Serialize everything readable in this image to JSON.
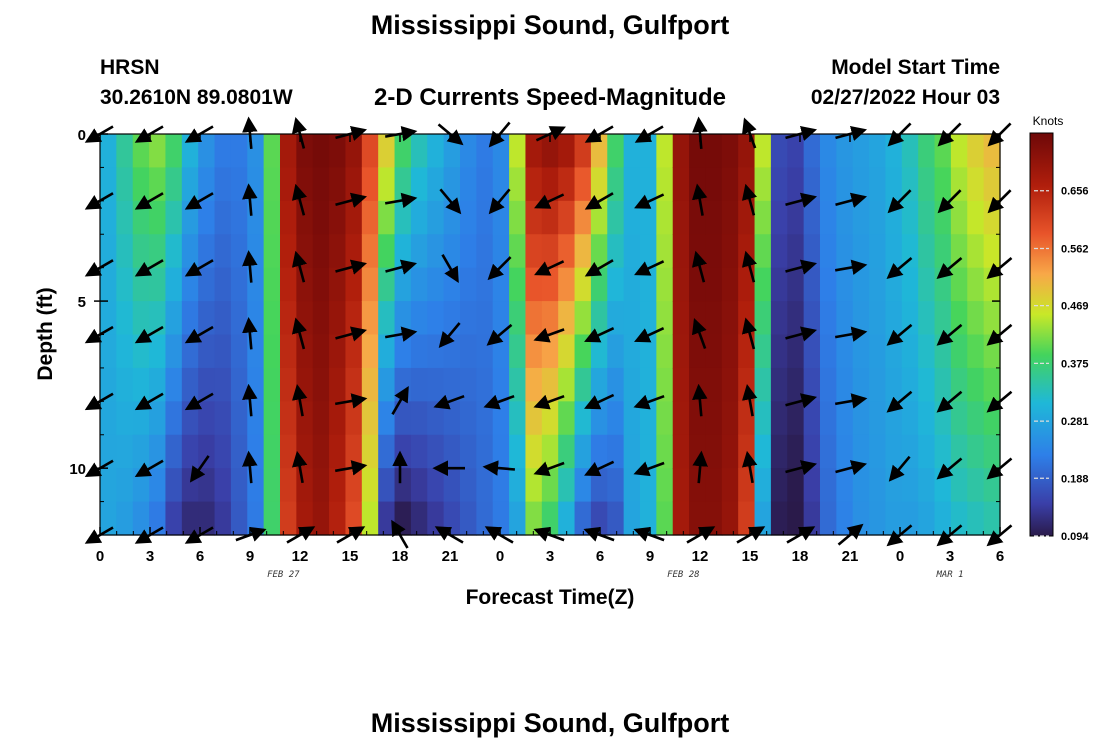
{
  "header": {
    "title": "Mississippi Sound, Gulfport",
    "station_id": "HRSN",
    "station_coords": "30.2610N  89.0801W",
    "plot_title": "2-D Currents Speed-Magnitude",
    "model_label": "Model Start Time",
    "model_time": "02/27/2022 Hour 03"
  },
  "footer": {
    "title": "Mississippi Sound, Gulfport"
  },
  "chart_data": {
    "type": "heatmap",
    "title": "2-D Currents Speed-Magnitude",
    "xlabel": "Forecast Time(Z)",
    "ylabel": "Depth (ft)",
    "x_tick_labels": [
      "0",
      "3",
      "6",
      "9",
      "12",
      "15",
      "18",
      "21",
      "0",
      "3",
      "6",
      "9",
      "12",
      "15",
      "18",
      "21",
      "0",
      "3",
      "6"
    ],
    "x_hours_from_start": [
      0,
      3,
      6,
      9,
      12,
      15,
      18,
      21,
      24,
      27,
      30,
      33,
      36,
      39,
      42,
      45,
      48,
      51,
      54
    ],
    "x_range_hours": [
      0,
      54
    ],
    "date_labels": [
      {
        "label": "FEB 27",
        "hour": 11
      },
      {
        "label": "FEB 28",
        "hour": 35
      },
      {
        "label": "MAR 1",
        "hour": 51
      }
    ],
    "y_ticks": [
      "0",
      "5",
      "10"
    ],
    "y_range_ft": [
      0,
      12
    ],
    "y_inverted": true,
    "colorbar": {
      "unit": "Knots",
      "range": [
        0.094,
        0.75
      ],
      "tick_labels": [
        "0.656",
        "0.562",
        "0.469",
        "0.375",
        "0.281",
        "0.188",
        "0.094"
      ],
      "colormap": "jet"
    },
    "depth_layers_ft": [
      0.5,
      1.5,
      2.5,
      3.5,
      4.5,
      5.5,
      6.5,
      7.5,
      8.5,
      9.5,
      10.5,
      11.5
    ],
    "speed_profile": {
      "hours": [
        0,
        1,
        2,
        3,
        4,
        5,
        6,
        7,
        8,
        9,
        10,
        11,
        12,
        13,
        14,
        15,
        16,
        17,
        18,
        19,
        20,
        21,
        22,
        23,
        24,
        25,
        26,
        27,
        28,
        29,
        30,
        31,
        32,
        33,
        34,
        35,
        36,
        37,
        38,
        39,
        40,
        41,
        42,
        43,
        44,
        45,
        46,
        47,
        48,
        49,
        50,
        51,
        52,
        53,
        54
      ],
      "surface_knots": [
        0.3,
        0.35,
        0.4,
        0.42,
        0.38,
        0.3,
        0.25,
        0.22,
        0.22,
        0.25,
        0.4,
        0.68,
        0.73,
        0.74,
        0.73,
        0.7,
        0.6,
        0.48,
        0.38,
        0.33,
        0.3,
        0.27,
        0.24,
        0.22,
        0.24,
        0.45,
        0.68,
        0.7,
        0.68,
        0.62,
        0.5,
        0.38,
        0.3,
        0.3,
        0.45,
        0.7,
        0.74,
        0.74,
        0.73,
        0.7,
        0.45,
        0.16,
        0.15,
        0.2,
        0.24,
        0.26,
        0.27,
        0.28,
        0.3,
        0.33,
        0.37,
        0.4,
        0.45,
        0.48,
        0.5
      ],
      "bottom_knots": [
        0.28,
        0.27,
        0.25,
        0.22,
        0.15,
        0.12,
        0.12,
        0.14,
        0.18,
        0.22,
        0.38,
        0.62,
        0.68,
        0.7,
        0.66,
        0.6,
        0.45,
        0.14,
        0.1,
        0.12,
        0.14,
        0.16,
        0.18,
        0.2,
        0.22,
        0.28,
        0.42,
        0.38,
        0.3,
        0.2,
        0.16,
        0.18,
        0.28,
        0.3,
        0.4,
        0.68,
        0.72,
        0.72,
        0.7,
        0.62,
        0.28,
        0.1,
        0.09,
        0.14,
        0.2,
        0.23,
        0.25,
        0.26,
        0.27,
        0.27,
        0.28,
        0.3,
        0.32,
        0.33,
        0.34
      ]
    },
    "vector_hours": [
      0,
      3,
      6,
      9,
      12,
      15,
      18,
      21,
      24,
      27,
      30,
      33,
      36,
      39,
      42,
      45,
      48,
      51,
      54
    ],
    "vector_depths_ft": [
      0,
      2,
      4,
      6,
      8,
      10,
      12
    ],
    "vector_direction_deg": [
      [
        240,
        240,
        240,
        355,
        345,
        75,
        80,
        130,
        220,
        65,
        240,
        240,
        355,
        340,
        75,
        75,
        225,
        225,
        225
      ],
      [
        240,
        240,
        240,
        355,
        345,
        75,
        80,
        140,
        220,
        245,
        240,
        245,
        350,
        345,
        75,
        75,
        225,
        225,
        225
      ],
      [
        240,
        240,
        240,
        355,
        345,
        75,
        75,
        150,
        225,
        245,
        240,
        245,
        345,
        345,
        75,
        80,
        230,
        230,
        230
      ],
      [
        240,
        240,
        240,
        355,
        345,
        75,
        80,
        220,
        230,
        250,
        245,
        245,
        340,
        345,
        75,
        80,
        230,
        230,
        230
      ],
      [
        240,
        240,
        240,
        355,
        350,
        80,
        30,
        250,
        250,
        250,
        245,
        250,
        355,
        350,
        75,
        80,
        230,
        230,
        230
      ],
      [
        240,
        240,
        215,
        355,
        350,
        80,
        0,
        270,
        275,
        250,
        245,
        250,
        5,
        350,
        75,
        75,
        220,
        230,
        230
      ],
      [
        240,
        240,
        240,
        70,
        60,
        60,
        330,
        300,
        300,
        290,
        290,
        290,
        60,
        60,
        60,
        50,
        230,
        230,
        230
      ]
    ]
  }
}
